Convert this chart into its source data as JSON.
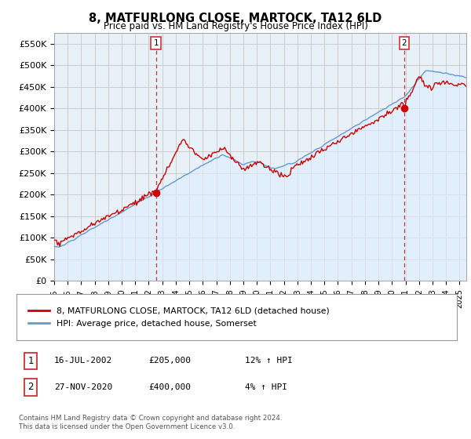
{
  "title": "8, MATFURLONG CLOSE, MARTOCK, TA12 6LD",
  "subtitle": "Price paid vs. HM Land Registry's House Price Index (HPI)",
  "ylabel_ticks": [
    "£0",
    "£50K",
    "£100K",
    "£150K",
    "£200K",
    "£250K",
    "£300K",
    "£350K",
    "£400K",
    "£450K",
    "£500K",
    "£550K"
  ],
  "ytick_values": [
    0,
    50000,
    100000,
    150000,
    200000,
    250000,
    300000,
    350000,
    400000,
    450000,
    500000,
    550000
  ],
  "ylim": [
    0,
    575000
  ],
  "xlim_start": 1995.0,
  "xlim_end": 2025.5,
  "sale1_date": 2002.54,
  "sale1_price": 205000,
  "sale2_date": 2020.91,
  "sale2_price": 400000,
  "line_color_property": "#cc0000",
  "line_color_hpi": "#6699cc",
  "fill_color_hpi": "#ddeeff",
  "legend_property": "8, MATFURLONG CLOSE, MARTOCK, TA12 6LD (detached house)",
  "legend_hpi": "HPI: Average price, detached house, Somerset",
  "table_row1": [
    "1",
    "16-JUL-2002",
    "£205,000",
    "12% ↑ HPI"
  ],
  "table_row2": [
    "2",
    "27-NOV-2020",
    "£400,000",
    "4% ↑ HPI"
  ],
  "footnote": "Contains HM Land Registry data © Crown copyright and database right 2024.\nThis data is licensed under the Open Government Licence v3.0.",
  "background_color": "#ffffff",
  "chart_bg_color": "#e8f0f8",
  "grid_color": "#cccccc",
  "xtick_years": [
    1995,
    1996,
    1997,
    1998,
    1999,
    2000,
    2001,
    2002,
    2003,
    2004,
    2005,
    2006,
    2007,
    2008,
    2009,
    2010,
    2011,
    2012,
    2013,
    2014,
    2015,
    2016,
    2017,
    2018,
    2019,
    2020,
    2021,
    2022,
    2023,
    2024,
    2025
  ]
}
